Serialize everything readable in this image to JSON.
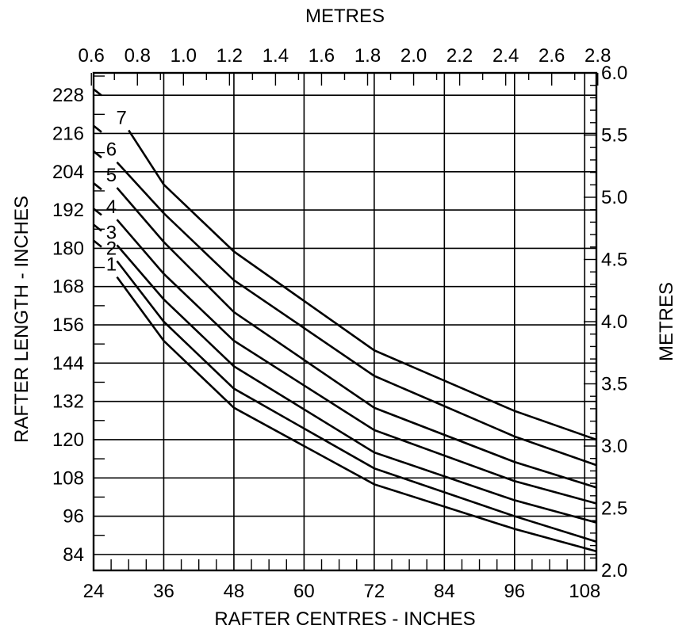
{
  "chart_data": {
    "type": "line",
    "xlabel": "RAFTER  CENTRES - INCHES",
    "ylabel": "RAFTER LENGTH - INCHES",
    "x2label": "METRES",
    "y2label": "METRES",
    "xlim": [
      24,
      110
    ],
    "ylim": [
      79,
      235
    ],
    "x_ticks": [
      24,
      36,
      48,
      60,
      72,
      84,
      96,
      108
    ],
    "y_ticks": [
      84,
      96,
      108,
      120,
      132,
      144,
      156,
      168,
      180,
      192,
      204,
      216,
      228
    ],
    "x2_ticks": [
      "0.6",
      "0.8",
      "1.0",
      "1.2",
      "1.4",
      "1.6",
      "1.8",
      "2.0",
      "2.2",
      "2.4",
      "2.6",
      "2.8"
    ],
    "x2_tick_values": [
      0.6,
      0.8,
      1.0,
      1.2,
      1.4,
      1.6,
      1.8,
      2.0,
      2.2,
      2.4,
      2.6,
      2.8
    ],
    "y2_ticks": [
      "2.0",
      "2.5",
      "3.0",
      "3.5",
      "4.0",
      "4.5",
      "5.0",
      "5.5",
      "6.0"
    ],
    "y2_tick_values": [
      2.0,
      2.5,
      3.0,
      3.5,
      4.0,
      4.5,
      5.0,
      5.5,
      6.0
    ],
    "grid": true,
    "series": [
      {
        "name": "1",
        "x": [
          28,
          36,
          48,
          72,
          96,
          110
        ],
        "y": [
          171,
          151,
          130,
          106,
          92,
          85
        ]
      },
      {
        "name": "2",
        "x": [
          28,
          36,
          48,
          72,
          96,
          110
        ],
        "y": [
          176,
          157,
          136,
          111,
          96,
          88
        ]
      },
      {
        "name": "3",
        "x": [
          28,
          36,
          48,
          72,
          96,
          110
        ],
        "y": [
          181,
          164,
          143,
          116,
          101,
          94
        ]
      },
      {
        "name": "4",
        "x": [
          28,
          36,
          48,
          72,
          96,
          110
        ],
        "y": [
          189,
          172,
          151,
          123,
          107,
          100
        ]
      },
      {
        "name": "5",
        "x": [
          28,
          36,
          48,
          72,
          96,
          110
        ],
        "y": [
          199,
          182,
          160,
          130,
          113,
          105
        ]
      },
      {
        "name": "6",
        "x": [
          28,
          36,
          48,
          72,
          96,
          110
        ],
        "y": [
          207,
          191,
          170,
          140,
          121,
          112
        ]
      },
      {
        "name": "7",
        "x": [
          30,
          36,
          48,
          72,
          96,
          110
        ],
        "y": [
          217,
          200,
          179,
          148,
          129,
          120
        ]
      }
    ]
  }
}
